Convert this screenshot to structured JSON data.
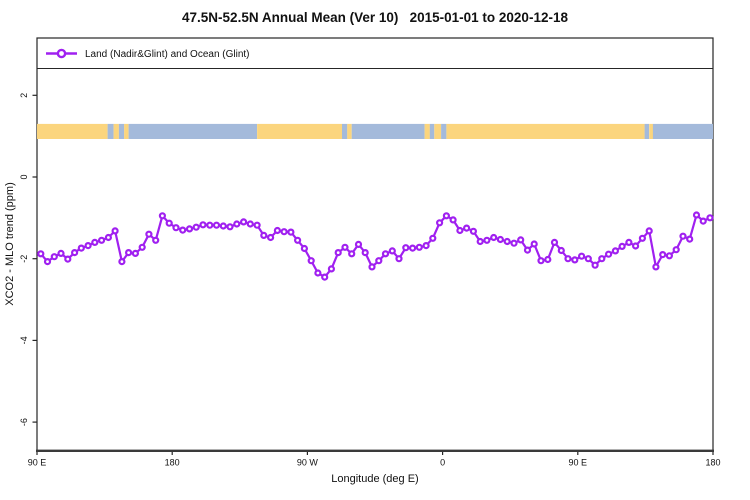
{
  "title": "47.5N-52.5N Annual Mean (Ver 10)   2015-01-01 to 2020-12-18",
  "legend": {
    "label": "Land (Nadir&Glint) and Ocean (Glint)"
  },
  "axes": {
    "x_label": "Longitude (deg E)",
    "x_ticks": [
      {
        "lon": 90,
        "label": "90 E"
      },
      {
        "lon": 180,
        "label": "180"
      },
      {
        "lon": 270,
        "label": "90 W"
      },
      {
        "lon": 360,
        "label": "0"
      },
      {
        "lon": 450,
        "label": "90 E"
      },
      {
        "lon": 540,
        "label": "180"
      }
    ],
    "y_label": "XCO2 - MLO trend (ppm)",
    "y_ticks": [
      {
        "value": 2,
        "label": "2"
      },
      {
        "value": 0,
        "label": "0"
      },
      {
        "value": -2,
        "label": "-2"
      },
      {
        "value": -4,
        "label": "-4"
      },
      {
        "value": -6,
        "label": "-6"
      }
    ]
  },
  "colors": {
    "series": "#A020F0",
    "land": "#FBD57E",
    "ocean": "#A4BADB",
    "axis": "#262626"
  },
  "chart_data": {
    "type": "line",
    "title": "47.5N-52.5N Annual Mean (Ver 10)   2015-01-01 to 2020-12-18",
    "xlabel": "Longitude (deg E)",
    "ylabel": "XCO2 - MLO trend (ppm)",
    "x_axis_note": "longitude wrapped: 90E -> 180 -> 90W -> 0 -> 90E -> 180, plotted as 90..540 deg E",
    "x_range": [
      90,
      540
    ],
    "ylim": [
      -6.9,
      3.4
    ],
    "grid": false,
    "legend_position": "top strip, left aligned",
    "x_start": 92.5,
    "x_step": 4.5,
    "series": [
      {
        "name": "Land (Nadir&Glint) and Ocean (Glint)",
        "color": "#A020F0",
        "marker": "open-circle",
        "values": [
          -1.88,
          -2.07,
          -1.95,
          -1.87,
          -2.01,
          -1.85,
          -1.74,
          -1.68,
          -1.6,
          -1.55,
          -1.48,
          -1.32,
          -2.07,
          -1.85,
          -1.87,
          -1.72,
          -1.4,
          -1.55,
          -0.95,
          -1.13,
          -1.24,
          -1.3,
          -1.27,
          -1.23,
          -1.17,
          -1.18,
          -1.18,
          -1.2,
          -1.22,
          -1.15,
          -1.1,
          -1.15,
          -1.18,
          -1.43,
          -1.48,
          -1.31,
          -1.34,
          -1.35,
          -1.55,
          -1.75,
          -2.05,
          -2.35,
          -2.45,
          -2.25,
          -1.85,
          -1.72,
          -1.88,
          -1.65,
          -1.85,
          -2.2,
          -2.05,
          -1.88,
          -1.81,
          -2.0,
          -1.73,
          -1.74,
          -1.72,
          -1.68,
          -1.5,
          -1.12,
          -0.95,
          -1.05,
          -1.31,
          -1.25,
          -1.33,
          -1.58,
          -1.55,
          -1.48,
          -1.53,
          -1.58,
          -1.62,
          -1.54,
          -1.79,
          -1.64,
          -2.05,
          -2.02,
          -1.6,
          -1.8,
          -2.0,
          -2.03,
          -1.94,
          -2.0,
          -2.16,
          -2.0,
          -1.89,
          -1.81,
          -1.7,
          -1.6,
          -1.69,
          -1.5,
          -1.32,
          -2.2,
          -1.9,
          -1.93,
          -1.78,
          -1.45,
          -1.52,
          -0.93,
          -1.08,
          -1.0
        ]
      }
    ],
    "surface_band": {
      "description": "land(yellow)/ocean(blue) mask strip along the latitude band",
      "y_range": [
        0.93,
        1.3
      ],
      "segments": [
        {
          "from": 90,
          "to": 137,
          "surface": "land"
        },
        {
          "from": 137,
          "to": 141,
          "surface": "ocean"
        },
        {
          "from": 141,
          "to": 144.5,
          "surface": "land"
        },
        {
          "from": 144.5,
          "to": 148,
          "surface": "ocean"
        },
        {
          "from": 148,
          "to": 151,
          "surface": "land"
        },
        {
          "from": 151,
          "to": 236.5,
          "surface": "ocean"
        },
        {
          "from": 236.5,
          "to": 293,
          "surface": "land"
        },
        {
          "from": 293,
          "to": 296.5,
          "surface": "ocean"
        },
        {
          "from": 296.5,
          "to": 299.5,
          "surface": "land"
        },
        {
          "from": 299.5,
          "to": 348,
          "surface": "ocean"
        },
        {
          "from": 348,
          "to": 351.5,
          "surface": "land"
        },
        {
          "from": 351.5,
          "to": 354.5,
          "surface": "ocean"
        },
        {
          "from": 354.5,
          "to": 359,
          "surface": "land"
        },
        {
          "from": 359,
          "to": 362.5,
          "surface": "ocean"
        },
        {
          "from": 362.5,
          "to": 494.5,
          "surface": "land"
        },
        {
          "from": 494.5,
          "to": 497.5,
          "surface": "ocean"
        },
        {
          "from": 497.5,
          "to": 500,
          "surface": "land"
        },
        {
          "from": 500,
          "to": 540,
          "surface": "ocean"
        }
      ]
    }
  }
}
